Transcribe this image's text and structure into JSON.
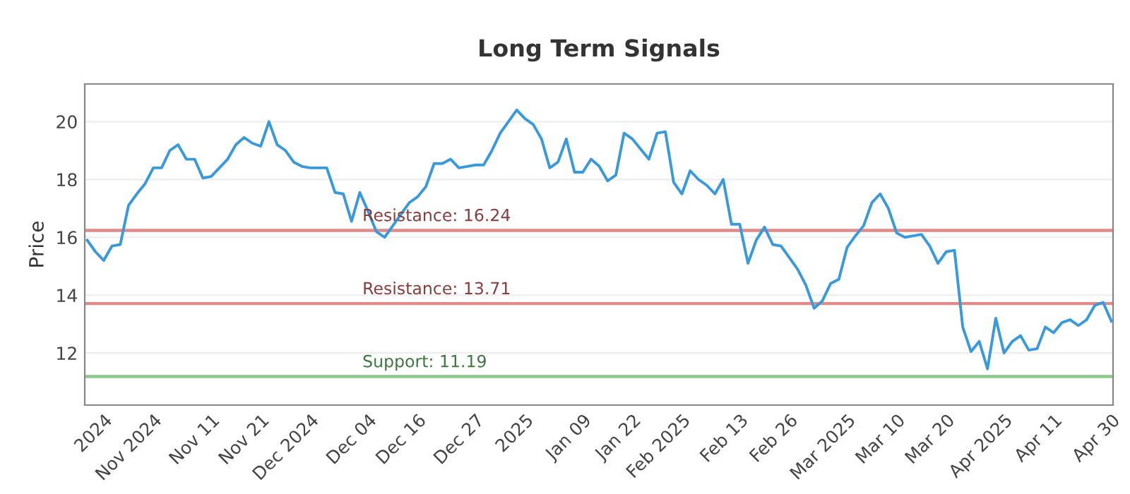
{
  "chart_data": {
    "type": "line",
    "title": "Long Term Signals",
    "ylabel": "Price",
    "series": [
      {
        "color": "#3a9ad9",
        "values": [
          15.9,
          15.5,
          15.2,
          15.7,
          15.75,
          17.1,
          17.5,
          17.85,
          18.4,
          18.4,
          19.0,
          19.2,
          18.7,
          18.7,
          18.05,
          18.1,
          18.4,
          18.7,
          19.2,
          19.45,
          19.25,
          19.15,
          20.0,
          19.2,
          19.0,
          18.6,
          18.45,
          18.4,
          18.4,
          18.4,
          17.55,
          17.5,
          16.55,
          17.55,
          16.9,
          16.2,
          16.0,
          16.4,
          16.8,
          17.2,
          17.4,
          17.75,
          18.55,
          18.55,
          18.7,
          18.4,
          18.45,
          18.5,
          18.5,
          19.0,
          19.6,
          20.0,
          20.4,
          20.1,
          19.9,
          19.4,
          18.4,
          18.6,
          19.4,
          18.25,
          18.25,
          18.7,
          18.45,
          17.95,
          18.15,
          19.6,
          19.4,
          19.05,
          18.7,
          19.6,
          19.65,
          17.9,
          17.5,
          18.3,
          18.0,
          17.8,
          17.5,
          18.0,
          16.45,
          16.45,
          15.1,
          15.9,
          16.35,
          15.75,
          15.7,
          15.3,
          14.9,
          14.35,
          13.55,
          13.8,
          14.4,
          14.55,
          15.65,
          16.05,
          16.4,
          17.2,
          17.5,
          17.0,
          16.15,
          16.0,
          16.05,
          16.1,
          15.7,
          15.1,
          15.5,
          15.55,
          12.9,
          12.05,
          12.4,
          11.45,
          13.2,
          12.0,
          12.4,
          12.6,
          12.1,
          12.15,
          12.9,
          12.7,
          13.05,
          13.15,
          12.95,
          13.15,
          13.65,
          13.75,
          13.1
        ]
      }
    ],
    "categories": [
      null,
      null,
      "2024",
      null,
      null,
      null,
      null,
      null,
      "Nov 2024",
      null,
      null,
      null,
      null,
      null,
      null,
      "Nov 11",
      null,
      null,
      null,
      null,
      null,
      "Nov 21",
      null,
      null,
      null,
      null,
      null,
      "Dec 2024",
      null,
      null,
      null,
      null,
      null,
      null,
      "Dec 04",
      null,
      null,
      null,
      null,
      null,
      "Dec 16",
      null,
      null,
      null,
      null,
      null,
      null,
      "Dec 27",
      null,
      null,
      null,
      null,
      null,
      "2025",
      null,
      null,
      null,
      null,
      null,
      null,
      "Jan 09",
      null,
      null,
      null,
      null,
      null,
      "Jan 22",
      null,
      null,
      null,
      null,
      null,
      "Feb 2025",
      null,
      null,
      null,
      null,
      null,
      null,
      "Feb 13",
      null,
      null,
      null,
      null,
      null,
      "Feb 26",
      null,
      null,
      null,
      null,
      null,
      null,
      "Mar 2025",
      null,
      null,
      null,
      null,
      null,
      "Mar 10",
      null,
      null,
      null,
      null,
      null,
      "Mar 20",
      null,
      null,
      null,
      null,
      null,
      null,
      "Apr 2025",
      null,
      null,
      null,
      null,
      null,
      "Apr 11",
      null,
      null,
      null,
      null,
      null,
      null,
      "Apr 30"
    ],
    "ylim": [
      10.2,
      21.3
    ],
    "yticks": [
      12,
      14,
      16,
      18,
      20
    ],
    "ref_lines": [
      {
        "axis": "y",
        "value": 16.24,
        "label": "Resistance: 16.24",
        "color": "#e08a8a"
      },
      {
        "axis": "y",
        "value": 13.71,
        "label": "Resistance: 13.71",
        "color": "#e08a8a"
      },
      {
        "axis": "y",
        "value": 11.19,
        "label": "Support: 11.19",
        "color": "#8cc88c"
      }
    ],
    "grid": "y",
    "marker": "none",
    "line_style": "solid"
  }
}
